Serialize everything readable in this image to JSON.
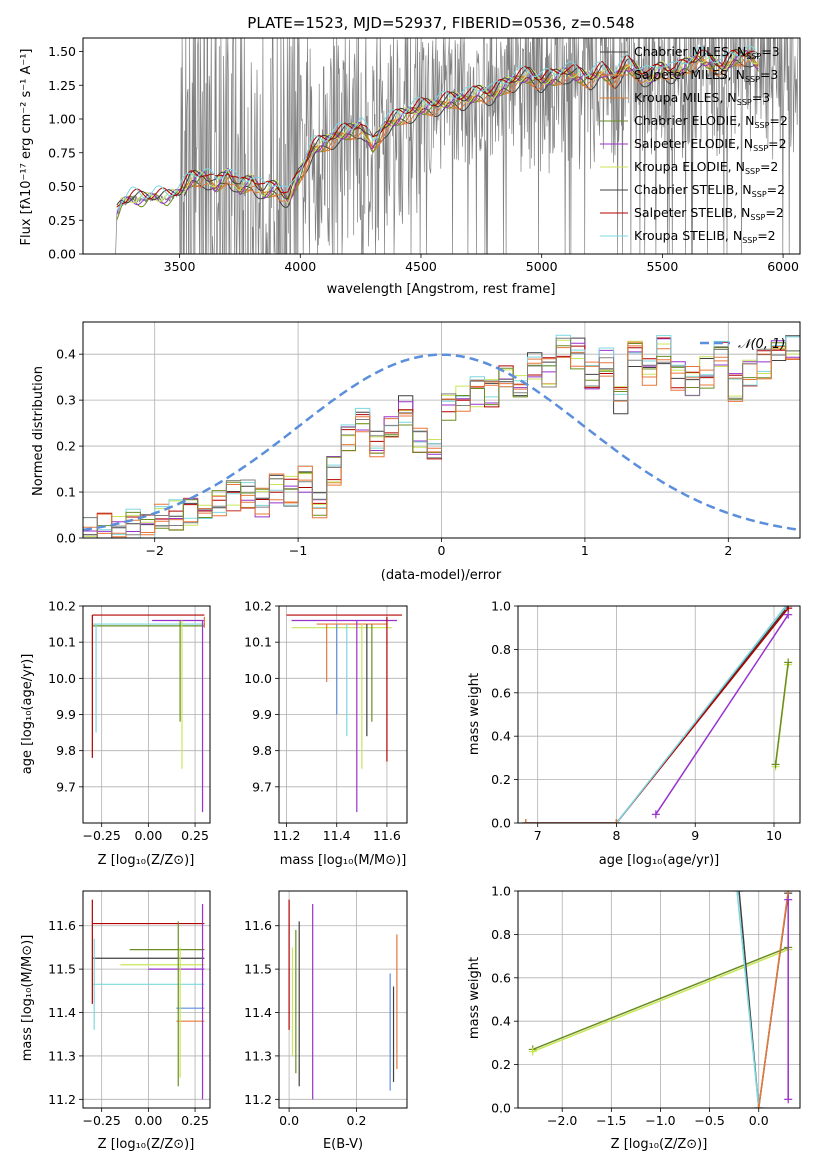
{
  "colors": {
    "gray": "#808080",
    "dark": "#404040",
    "red": "#b20000",
    "orange": "#e8773a",
    "purple": "#9932cc",
    "lime": "#c8e65a",
    "cyan": "#7dd8e0",
    "blue": "#5b8fdb",
    "green": "#6b8e23",
    "chabrier_miles": "#404040",
    "salpeter_miles": "#e8773a",
    "kroupa_miles": "#d8792c",
    "chabrier_elodie": "#6b8e23",
    "salpeter_elodie": "#9932cc",
    "kroupa_elodie": "#c8e65a",
    "chabrier_stelib": "#404040",
    "salpeter_stelib": "#b20000",
    "kroupa_stelib": "#7dd8e0"
  },
  "chart_data": [
    {
      "id": "spectrum",
      "type": "line",
      "title": "PLATE=1523, MJD=52937, FIBERID=0536, z=0.548",
      "xlabel": "wavelength [Angstrom, rest frame]",
      "ylabel": "Flux [fλ10⁻¹⁷ erg cm⁻² s⁻¹ A⁻¹]",
      "xlim": [
        3100,
        6070
      ],
      "ylim": [
        0,
        1.6
      ],
      "xticks": [
        3500,
        4000,
        4500,
        5000,
        5500,
        6000
      ],
      "yticks": [
        0.0,
        0.25,
        0.5,
        0.75,
        1.0,
        1.25,
        1.5
      ],
      "legend_position": "top-right",
      "legend": [
        {
          "label": "Chabrier MILES, N_SSP=3",
          "color": "#404040"
        },
        {
          "label": "Salpeter MILES, N_SSP=3",
          "color": "#e8773a"
        },
        {
          "label": "Kroupa MILES, N_SSP=3",
          "color": "#d8792c"
        },
        {
          "label": "Chabrier ELODIE, N_SSP=2",
          "color": "#6b8e23"
        },
        {
          "label": "Salpeter ELODIE, N_SSP=2",
          "color": "#9932cc"
        },
        {
          "label": "Kroupa ELODIE, N_SSP=2",
          "color": "#c8e65a"
        },
        {
          "label": "Chabrier STELIB, N_SSP=2",
          "color": "#404040"
        },
        {
          "label": "Salpeter STELIB, N_SSP=2",
          "color": "#b20000"
        },
        {
          "label": "Kroupa STELIB, N_SSP=2",
          "color": "#7dd8e0"
        }
      ],
      "model_continuum": {
        "x": [
          3240,
          3260,
          3300,
          3350,
          3400,
          3450,
          3500,
          3550,
          3600,
          3650,
          3700,
          3750,
          3800,
          3850,
          3900,
          3950,
          4000,
          4050,
          4100,
          4150,
          4200,
          4250,
          4300,
          4350,
          4400,
          4450,
          4500,
          4550,
          4600,
          4650,
          4700,
          4750,
          4800,
          4850,
          4900,
          4950,
          5000,
          5050,
          5100,
          5150,
          5200,
          5250,
          5300,
          5350,
          5400,
          5450,
          5500,
          5550,
          5600,
          5650,
          5700,
          5750,
          5800,
          5850,
          5900
        ],
        "y": [
          0.3,
          0.37,
          0.41,
          0.4,
          0.42,
          0.41,
          0.45,
          0.55,
          0.58,
          0.5,
          0.6,
          0.48,
          0.55,
          0.45,
          0.5,
          0.4,
          0.6,
          0.78,
          0.82,
          0.88,
          0.9,
          0.95,
          0.8,
          0.95,
          1.0,
          1.05,
          1.08,
          1.1,
          1.12,
          1.15,
          1.15,
          1.2,
          1.18,
          1.25,
          1.3,
          1.32,
          1.28,
          1.3,
          1.35,
          1.32,
          1.3,
          1.35,
          1.3,
          1.4,
          1.35,
          1.3,
          1.38,
          1.33,
          1.4,
          1.45,
          1.42,
          1.38,
          1.45,
          1.48,
          1.4
        ]
      }
    },
    {
      "id": "residuals",
      "type": "bar",
      "xlabel": "(data-model)/error",
      "ylabel": "Normed distribution",
      "xlim": [
        -2.5,
        2.5
      ],
      "ylim": [
        0,
        0.47
      ],
      "xticks": [
        -2,
        -1,
        0,
        1,
        2
      ],
      "yticks": [
        0.0,
        0.1,
        0.2,
        0.3,
        0.4
      ],
      "legend_position": "top-right",
      "legend": [
        {
          "label": "𝒩(0, 1)",
          "color": "#5b8fdb"
        }
      ],
      "bin_edges_start": -2.5,
      "bin_width": 0.1,
      "histogram": [
        0.01,
        0.02,
        0.02,
        0.03,
        0.03,
        0.04,
        0.05,
        0.06,
        0.06,
        0.08,
        0.09,
        0.1,
        0.08,
        0.11,
        0.1,
        0.13,
        0.07,
        0.15,
        0.22,
        0.25,
        0.2,
        0.24,
        0.28,
        0.22,
        0.2,
        0.28,
        0.3,
        0.32,
        0.31,
        0.34,
        0.33,
        0.38,
        0.36,
        0.42,
        0.4,
        0.35,
        0.38,
        0.3,
        0.4,
        0.36,
        0.41,
        0.35,
        0.34,
        0.36,
        0.4,
        0.33,
        0.36,
        0.38,
        0.4,
        0.42
      ]
    },
    {
      "id": "age_vs_Z",
      "type": "scatter",
      "xlabel": "Z [log₁₀(Z/Z⊙)]",
      "ylabel": "age  [log₁₀(age/yr)]",
      "xlim": [
        -0.35,
        0.33
      ],
      "ylim": [
        9.6,
        10.2
      ],
      "xticks": [
        -0.25,
        0.0,
        0.25
      ],
      "xticklabels": [
        "−0.25",
        "0.00",
        "0.25"
      ],
      "yticks": [
        9.7,
        9.8,
        9.9,
        10.0,
        10.1,
        10.2
      ]
    },
    {
      "id": "age_vs_mass",
      "type": "scatter",
      "xlabel": "mass [log₁₀(M/M⊙)]",
      "xlim": [
        11.17,
        11.68
      ],
      "ylim": [
        9.6,
        10.2
      ],
      "xticks": [
        11.2,
        11.4,
        11.6
      ],
      "yticks": [
        9.7,
        9.8,
        9.9,
        10.0,
        10.1,
        10.2
      ]
    },
    {
      "id": "weight_vs_age",
      "type": "line",
      "xlabel": "age  [log₁₀(age/yr)]",
      "ylabel": "mass weight",
      "xlim": [
        6.75,
        10.33
      ],
      "ylim": [
        0,
        1
      ],
      "xticks": [
        7,
        8,
        9,
        10
      ],
      "yticks": [
        0.0,
        0.2,
        0.4,
        0.6,
        0.8,
        1.0
      ],
      "series": [
        {
          "color": "#404040",
          "x": [
            6.85,
            8.0,
            10.18
          ],
          "y": [
            0.0,
            0.0,
            1.0
          ]
        },
        {
          "color": "#b20000",
          "x": [
            6.85,
            8.0,
            10.18
          ],
          "y": [
            0.0,
            0.0,
            0.99
          ]
        },
        {
          "color": "#7dd8e0",
          "x": [
            6.85,
            8.0,
            10.15
          ],
          "y": [
            0.0,
            0.0,
            1.0
          ]
        },
        {
          "color": "#e8773a",
          "x": [
            6.85,
            8.0
          ],
          "y": [
            0.0,
            0.0
          ]
        },
        {
          "color": "#9932cc",
          "x": [
            8.5,
            10.18
          ],
          "y": [
            0.04,
            0.96
          ]
        },
        {
          "color": "#c8e65a",
          "x": [
            10.02,
            10.18
          ],
          "y": [
            0.26,
            0.73
          ]
        },
        {
          "color": "#6b8e23",
          "x": [
            10.02,
            10.18
          ],
          "y": [
            0.27,
            0.74
          ]
        }
      ]
    },
    {
      "id": "mass_vs_Z",
      "type": "scatter",
      "xlabel": "Z [log₁₀(Z/Z⊙)]",
      "ylabel": "mass [log₁₀(M/M⊙)]",
      "xlim": [
        -0.35,
        0.33
      ],
      "ylim": [
        11.18,
        11.68
      ],
      "xticks": [
        -0.25,
        0.0,
        0.25
      ],
      "xticklabels": [
        "−0.25",
        "0.00",
        "0.25"
      ],
      "yticks": [
        11.2,
        11.3,
        11.4,
        11.5,
        11.6
      ]
    },
    {
      "id": "mass_vs_ebv",
      "type": "scatter",
      "xlabel": "E(B-V)",
      "xlim": [
        -0.03,
        0.35
      ],
      "ylim": [
        11.18,
        11.68
      ],
      "xticks": [
        0.0,
        0.2
      ],
      "xticklabels": [
        "0.0",
        "0.2"
      ],
      "yticks": [
        11.2,
        11.3,
        11.4,
        11.5,
        11.6
      ]
    },
    {
      "id": "weight_vs_Z",
      "type": "line",
      "xlabel": "Z [log₁₀(Z/Z⊙)]",
      "ylabel": "mass weight",
      "xlim": [
        -2.45,
        0.42
      ],
      "ylim": [
        0,
        1
      ],
      "xticks": [
        -2.0,
        -1.5,
        -1.0,
        -0.5,
        0.0
      ],
      "xticklabels": [
        "−2.0",
        "−1.5",
        "−1.0",
        "−0.5",
        "0.0"
      ],
      "yticks": [
        0.0,
        0.2,
        0.4,
        0.6,
        0.8,
        1.0
      ],
      "series": [
        {
          "color": "#6b8e23",
          "x": [
            -2.3,
            0.3
          ],
          "y": [
            0.27,
            0.74
          ]
        },
        {
          "color": "#c8e65a",
          "x": [
            -2.3,
            0.3
          ],
          "y": [
            0.26,
            0.73
          ]
        },
        {
          "color": "#404040",
          "x": [
            -0.2,
            0.0,
            0.3
          ],
          "y": [
            1.0,
            0.0,
            0.99
          ]
        },
        {
          "color": "#7dd8e0",
          "x": [
            -0.22,
            0.0
          ],
          "y": [
            1.0,
            0.0
          ]
        },
        {
          "color": "#e8773a",
          "x": [
            0.0,
            0.3
          ],
          "y": [
            0.0,
            1.0
          ]
        },
        {
          "color": "#9932cc",
          "x": [
            0.3,
            0.3
          ],
          "y": [
            0.04,
            0.96
          ]
        }
      ]
    }
  ]
}
